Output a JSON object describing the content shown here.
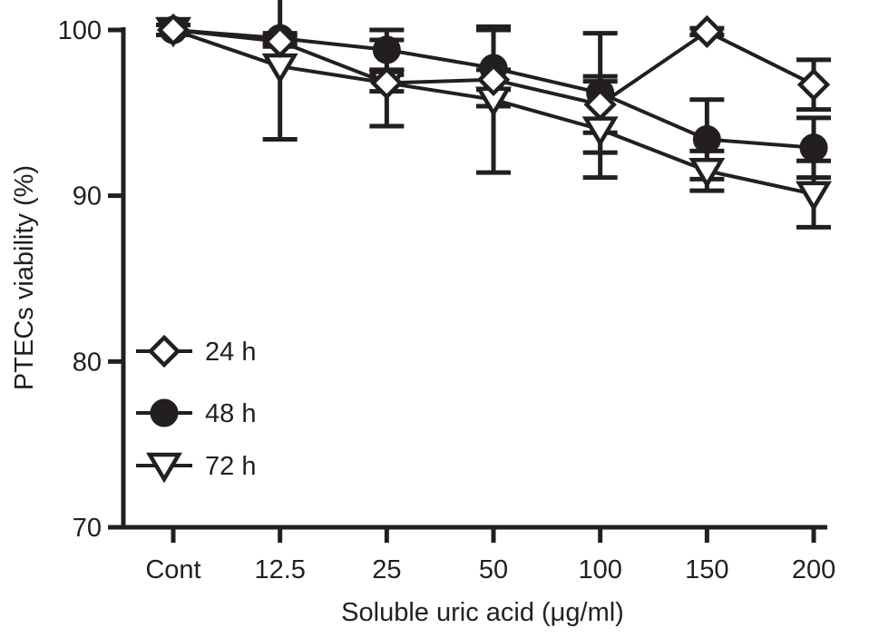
{
  "chart_data": {
    "type": "line",
    "title": "",
    "xlabel": "Soluble uric acid (μg/ml)",
    "ylabel": "PTECs viability (%)",
    "ylim": [
      70,
      100
    ],
    "yticks": [
      "70",
      "80",
      "90",
      "100"
    ],
    "categories": [
      "Cont",
      "12.5",
      "25",
      "50",
      "100",
      "150",
      "200"
    ],
    "grid": false,
    "legend_position": "lower-left",
    "series": [
      {
        "name": "24 h",
        "marker": "diamond-open",
        "values": [
          100.0,
          99.3,
          96.8,
          97.0,
          95.5,
          99.9,
          96.7
        ],
        "errors": [
          0,
          0.3,
          0.5,
          0.6,
          1.7,
          0.2,
          1.5
        ]
      },
      {
        "name": "48 h",
        "marker": "circle-filled",
        "values": [
          100.0,
          99.5,
          98.8,
          97.7,
          96.2,
          93.4,
          92.9
        ],
        "errors": [
          0,
          0.3,
          1.2,
          2.3,
          3.6,
          2.4,
          1.8
        ]
      },
      {
        "name": "72 h",
        "marker": "triangle-down-open",
        "values": [
          100.0,
          97.8,
          96.8,
          95.8,
          94.0,
          91.5,
          90.1
        ],
        "errors": [
          0.3,
          4.4,
          2.6,
          4.4,
          2.9,
          1.2,
          2.0
        ]
      }
    ],
    "colors": {
      "ink": "#231f20",
      "marker_fill": "#231f20",
      "background": "#ffffff"
    }
  }
}
